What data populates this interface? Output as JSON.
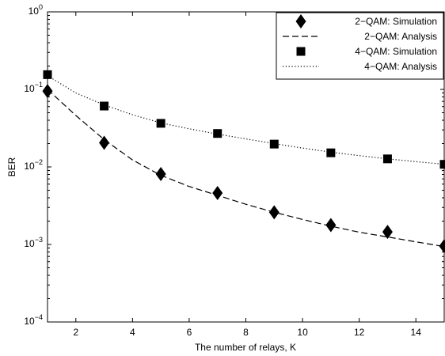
{
  "chart_data": {
    "type": "line",
    "xlabel": "The number of relays, K",
    "ylabel": "BER",
    "xlim": [
      1,
      15
    ],
    "ylim": [
      0.0001,
      1
    ],
    "yscale": "log",
    "grid": false,
    "legend_position": "top-right",
    "x_ticks": [
      2,
      4,
      6,
      8,
      10,
      12,
      14
    ],
    "y_ticks": [
      {
        "value": 0.0001,
        "base": "10",
        "exp": "−4"
      },
      {
        "value": 0.001,
        "base": "10",
        "exp": "−3"
      },
      {
        "value": 0.01,
        "base": "10",
        "exp": "−2"
      },
      {
        "value": 0.1,
        "base": "10",
        "exp": "−1"
      },
      {
        "value": 1,
        "base": "10",
        "exp": "0"
      }
    ],
    "series": [
      {
        "name": "2−QAM: Simulation",
        "style": "markers",
        "marker": "diamond",
        "color": "#000000",
        "x": [
          1,
          3,
          5,
          7,
          9,
          11,
          13,
          15
        ],
        "y": [
          0.095,
          0.0205,
          0.0081,
          0.0046,
          0.0026,
          0.00178,
          0.00145,
          0.00095
        ]
      },
      {
        "name": "2−QAM: Analysis",
        "style": "dashed",
        "color": "#000000",
        "x": [
          1,
          2,
          3,
          4,
          5,
          6,
          7,
          8,
          9,
          10,
          11,
          12,
          13,
          14,
          15
        ],
        "y": [
          0.1,
          0.046,
          0.0225,
          0.0123,
          0.0078,
          0.0056,
          0.0043,
          0.0033,
          0.0026,
          0.0021,
          0.00172,
          0.00144,
          0.00125,
          0.00108,
          0.00094
        ]
      },
      {
        "name": "4−QAM: Simulation",
        "style": "markers",
        "marker": "square",
        "color": "#000000",
        "x": [
          1,
          3,
          5,
          7,
          9,
          11,
          13,
          15
        ],
        "y": [
          0.155,
          0.061,
          0.0365,
          0.027,
          0.0197,
          0.0152,
          0.0127,
          0.0108
        ]
      },
      {
        "name": "4−QAM: Analysis",
        "style": "dotted",
        "color": "#000000",
        "x": [
          1,
          2,
          3,
          4,
          5,
          6,
          7,
          8,
          9,
          10,
          11,
          12,
          13,
          14,
          15
        ],
        "y": [
          0.15,
          0.09,
          0.063,
          0.047,
          0.037,
          0.031,
          0.0265,
          0.023,
          0.02,
          0.0175,
          0.0155,
          0.014,
          0.0127,
          0.0117,
          0.0108
        ]
      }
    ]
  }
}
